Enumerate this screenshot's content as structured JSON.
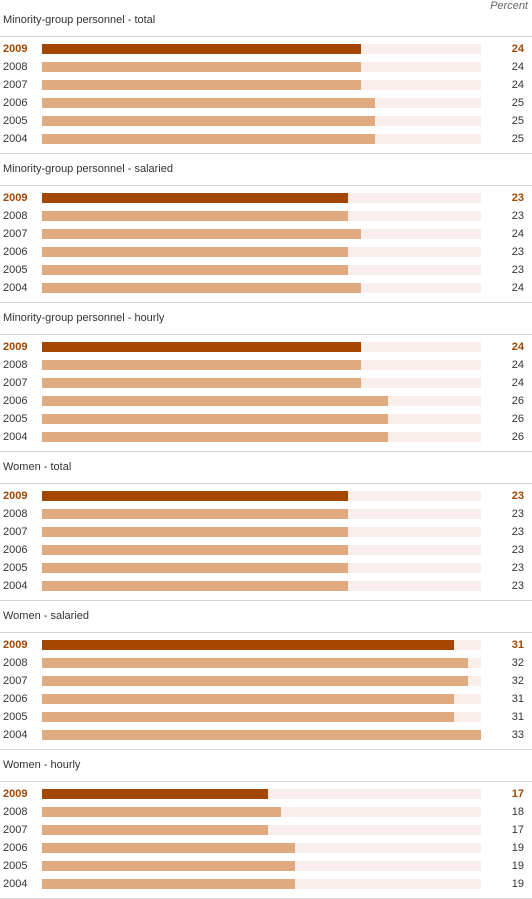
{
  "unit_label": "Percent",
  "colors": {
    "current": "#a24600",
    "previous": "#dfaa80",
    "track": "#f9eeec",
    "rule": "#d3d3d3"
  },
  "chart_data": {
    "type": "bar",
    "orientation": "horizontal",
    "xlim": [
      0,
      33
    ],
    "grid": false,
    "charts": [
      {
        "title": "Minority-group personnel - total",
        "categories": [
          "2009",
          "2008",
          "2007",
          "2006",
          "2005",
          "2004"
        ],
        "values": [
          24,
          24,
          24,
          25,
          25,
          25
        ]
      },
      {
        "title": "Minority-group personnel - salaried",
        "categories": [
          "2009",
          "2008",
          "2007",
          "2006",
          "2005",
          "2004"
        ],
        "values": [
          23,
          23,
          24,
          23,
          23,
          24
        ]
      },
      {
        "title": "Minority-group personnel - hourly",
        "categories": [
          "2009",
          "2008",
          "2007",
          "2006",
          "2005",
          "2004"
        ],
        "values": [
          24,
          24,
          24,
          26,
          26,
          26
        ]
      },
      {
        "title": "Women - total",
        "categories": [
          "2009",
          "2008",
          "2007",
          "2006",
          "2005",
          "2004"
        ],
        "values": [
          23,
          23,
          23,
          23,
          23,
          23
        ]
      },
      {
        "title": "Women - salaried",
        "categories": [
          "2009",
          "2008",
          "2007",
          "2006",
          "2005",
          "2004"
        ],
        "values": [
          31,
          32,
          32,
          31,
          31,
          33
        ]
      },
      {
        "title": "Women - hourly",
        "categories": [
          "2009",
          "2008",
          "2007",
          "2006",
          "2005",
          "2004"
        ],
        "values": [
          17,
          18,
          17,
          19,
          19,
          19
        ]
      }
    ]
  }
}
